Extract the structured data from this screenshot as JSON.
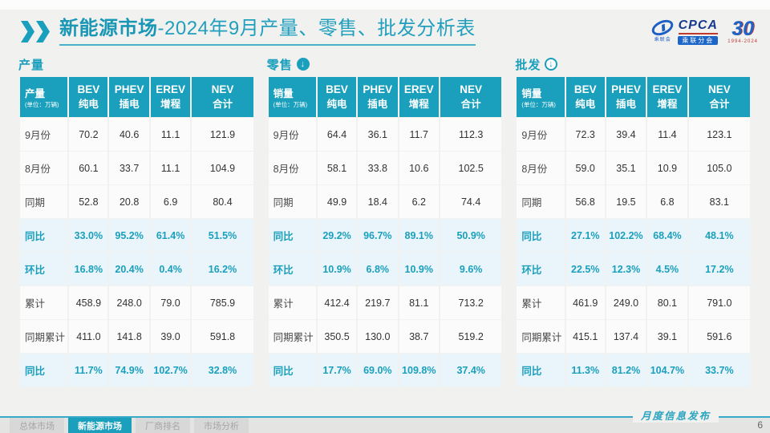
{
  "header": {
    "title_bold": "新能源市场",
    "title_rest": "-2024年9月产量、零售、批发分析表",
    "logos": {
      "cpca_icon_caption": "乘联会",
      "cpca_text": "CPCA",
      "cpca_sub": "乘联分会",
      "anniversary_number": "30",
      "anniversary_years": "1994-2024"
    }
  },
  "colors": {
    "accent_teal": "#1a9fbc",
    "highlight_row_bg": "#e9f5fb",
    "slide_bg": "#f1f1f0",
    "cell_bg": "#fbfbfb",
    "logo_blue": "#1d66c9"
  },
  "chart_data": [
    {
      "type": "table",
      "id": "production",
      "section_title": "产量",
      "arrow_icon": null,
      "corner": {
        "label": "产量",
        "unit": "(单位：万辆)"
      },
      "columns": [
        {
          "top": "BEV",
          "bottom": "纯电"
        },
        {
          "top": "PHEV",
          "bottom": "插电"
        },
        {
          "top": "EREV",
          "bottom": "增程"
        },
        {
          "top": "NEV",
          "bottom": "合计"
        }
      ],
      "rows": [
        {
          "label": "9月份",
          "values": [
            "70.2",
            "40.6",
            "11.1",
            "121.9"
          ],
          "style": "normal"
        },
        {
          "label": "8月份",
          "values": [
            "60.1",
            "33.7",
            "11.1",
            "104.9"
          ],
          "style": "normal"
        },
        {
          "label": "同期",
          "values": [
            "52.8",
            "20.8",
            "6.9",
            "80.4"
          ],
          "style": "normal"
        },
        {
          "label": "同比",
          "values": [
            "33.0%",
            "95.2%",
            "61.4%",
            "51.5%"
          ],
          "style": "highlight"
        },
        {
          "label": "环比",
          "values": [
            "16.8%",
            "20.4%",
            "0.4%",
            "16.2%"
          ],
          "style": "highlight"
        },
        {
          "label": "累计",
          "values": [
            "458.9",
            "248.0",
            "79.0",
            "785.9"
          ],
          "style": "normal"
        },
        {
          "label": "同期累计",
          "values": [
            "411.0",
            "141.8",
            "39.0",
            "591.8"
          ],
          "style": "normal"
        },
        {
          "label": "同比",
          "values": [
            "11.7%",
            "74.9%",
            "102.7%",
            "32.8%"
          ],
          "style": "highlight"
        }
      ]
    },
    {
      "type": "table",
      "id": "retail",
      "section_title": "零售",
      "arrow_icon": "solid-down-circle",
      "corner": {
        "label": "销量",
        "unit": "(单位：万辆)"
      },
      "columns": [
        {
          "top": "BEV",
          "bottom": "纯电"
        },
        {
          "top": "PHEV",
          "bottom": "插电"
        },
        {
          "top": "EREV",
          "bottom": "增程"
        },
        {
          "top": "NEV",
          "bottom": "合计"
        }
      ],
      "rows": [
        {
          "label": "9月份",
          "values": [
            "64.4",
            "36.1",
            "11.7",
            "112.3"
          ],
          "style": "normal"
        },
        {
          "label": "8月份",
          "values": [
            "58.1",
            "33.8",
            "10.6",
            "102.5"
          ],
          "style": "normal"
        },
        {
          "label": "同期",
          "values": [
            "49.9",
            "18.4",
            "6.2",
            "74.4"
          ],
          "style": "normal"
        },
        {
          "label": "同比",
          "values": [
            "29.2%",
            "96.7%",
            "89.1%",
            "50.9%"
          ],
          "style": "highlight"
        },
        {
          "label": "环比",
          "values": [
            "10.9%",
            "6.8%",
            "10.9%",
            "9.6%"
          ],
          "style": "highlight"
        },
        {
          "label": "累计",
          "values": [
            "412.4",
            "219.7",
            "81.1",
            "713.2"
          ],
          "style": "normal"
        },
        {
          "label": "同期累计",
          "values": [
            "350.5",
            "130.0",
            "38.7",
            "519.2"
          ],
          "style": "normal"
        },
        {
          "label": "同比",
          "values": [
            "17.7%",
            "69.0%",
            "109.8%",
            "37.4%"
          ],
          "style": "highlight"
        }
      ]
    },
    {
      "type": "table",
      "id": "wholesale",
      "section_title": "批发",
      "arrow_icon": "outline-down-circle",
      "corner": {
        "label": "销量",
        "unit": "(单位：万辆)"
      },
      "columns": [
        {
          "top": "BEV",
          "bottom": "纯电"
        },
        {
          "top": "PHEV",
          "bottom": "插电"
        },
        {
          "top": "EREV",
          "bottom": "增程"
        },
        {
          "top": "NEV",
          "bottom": "合计"
        }
      ],
      "rows": [
        {
          "label": "9月份",
          "values": [
            "72.3",
            "39.4",
            "11.4",
            "123.1"
          ],
          "style": "normal"
        },
        {
          "label": "8月份",
          "values": [
            "59.0",
            "35.1",
            "10.9",
            "105.0"
          ],
          "style": "normal"
        },
        {
          "label": "同期",
          "values": [
            "56.8",
            "19.5",
            "6.8",
            "83.1"
          ],
          "style": "normal"
        },
        {
          "label": "同比",
          "values": [
            "27.1%",
            "102.2%",
            "68.4%",
            "48.1%"
          ],
          "style": "highlight"
        },
        {
          "label": "环比",
          "values": [
            "22.5%",
            "12.3%",
            "4.5%",
            "17.2%"
          ],
          "style": "highlight"
        },
        {
          "label": "累计",
          "values": [
            "461.9",
            "249.0",
            "80.1",
            "791.0"
          ],
          "style": "normal"
        },
        {
          "label": "同期累计",
          "values": [
            "415.1",
            "137.4",
            "39.1",
            "591.6"
          ],
          "style": "normal"
        },
        {
          "label": "同比",
          "values": [
            "11.3%",
            "81.2%",
            "104.7%",
            "33.7%"
          ],
          "style": "highlight"
        }
      ]
    }
  ],
  "footer": {
    "tabs": [
      {
        "label": "总体市场",
        "active": false
      },
      {
        "label": "新能源市场",
        "active": true
      },
      {
        "label": "厂商排名",
        "active": false
      },
      {
        "label": "市场分析",
        "active": false
      }
    ],
    "publication": "月度信息发布",
    "page_number": "6"
  }
}
